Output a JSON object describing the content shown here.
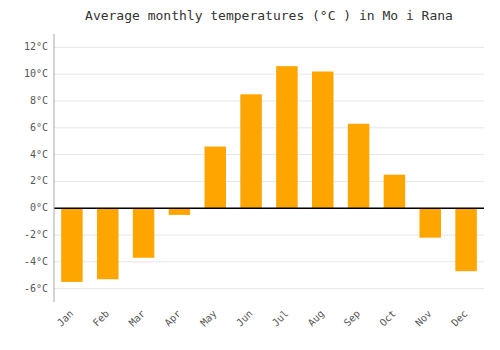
{
  "chart_data": {
    "type": "bar",
    "title": "Average monthly temperatures (°C ) in Mo i Rana",
    "categories": [
      "Jan",
      "Feb",
      "Mar",
      "Apr",
      "May",
      "Jun",
      "Jul",
      "Aug",
      "Sep",
      "Oct",
      "Nov",
      "Dec"
    ],
    "values": [
      -5.5,
      -5.3,
      -3.7,
      -0.5,
      4.6,
      8.5,
      10.6,
      10.2,
      6.3,
      2.5,
      -2.2,
      -4.7
    ],
    "color": "#FFA500",
    "ylim": [
      -7,
      13
    ],
    "yticks": [
      {
        "value": -6,
        "label": "-6°C"
      },
      {
        "value": -4,
        "label": "-4°C"
      },
      {
        "value": -2,
        "label": "-2°C"
      },
      {
        "value": 0,
        "label": "0°C"
      },
      {
        "value": 2,
        "label": "2°C"
      },
      {
        "value": 4,
        "label": "4°C"
      },
      {
        "value": 6,
        "label": "6°C"
      },
      {
        "value": 8,
        "label": "8°C"
      },
      {
        "value": 10,
        "label": "10°C"
      },
      {
        "value": 12,
        "label": "12°C"
      }
    ],
    "grid": true
  }
}
